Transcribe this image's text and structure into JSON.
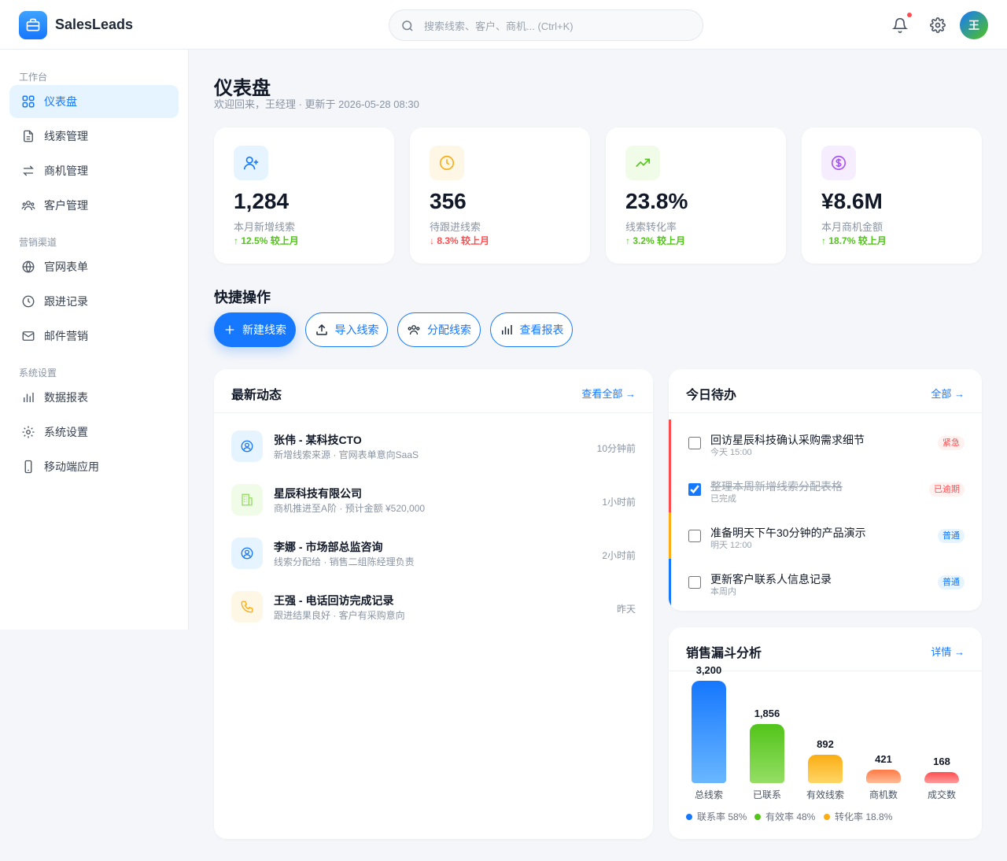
{
  "header": {
    "brand": "SalesLeads",
    "search_placeholder": "搜索线索、客户、商机... (Ctrl+K)",
    "avatar_text": "王"
  },
  "sidebar": {
    "sections": [
      {
        "title": "工作台",
        "items": [
          {
            "label": "仪表盘",
            "icon": "grid-icon",
            "active": true
          },
          {
            "label": "线索管理",
            "icon": "document-icon"
          },
          {
            "label": "商机管理",
            "icon": "swap-icon"
          },
          {
            "label": "客户管理",
            "icon": "users-icon"
          }
        ]
      },
      {
        "title": "营销渠道",
        "items": [
          {
            "label": "官网表单",
            "icon": "globe-icon"
          },
          {
            "label": "跟进记录",
            "icon": "clock-icon"
          },
          {
            "label": "邮件营销",
            "icon": "mail-icon"
          }
        ]
      },
      {
        "title": "系统设置",
        "items": [
          {
            "label": "数据报表",
            "icon": "bar-chart-icon"
          },
          {
            "label": "系统设置",
            "icon": "gear-icon"
          },
          {
            "label": "移动端应用",
            "icon": "phone-icon"
          }
        ]
      }
    ]
  },
  "page": {
    "title": "仪表盘",
    "subtitle": "欢迎回来，王经理 · 更新于 2026-05-28 08:30"
  },
  "stats": [
    {
      "value": "1,284",
      "label": "本月新增线索",
      "trend": "↑ 12.5% 较上月",
      "direction": "up",
      "icon": "user-plus-icon",
      "color": "#1677ff",
      "bg": "#e6f4ff"
    },
    {
      "value": "356",
      "label": "待跟进线索",
      "trend": "↓ 8.3% 较上月",
      "direction": "down",
      "icon": "clock-icon",
      "color": "#faad14",
      "bg": "#fff7e6"
    },
    {
      "value": "23.8%",
      "label": "线索转化率",
      "trend": "↑ 3.2% 较上月",
      "direction": "up",
      "icon": "trending-up-icon",
      "color": "#52c41a",
      "bg": "#f0fbe8"
    },
    {
      "value": "¥8.6M",
      "label": "本月商机金额",
      "trend": "↑ 18.7% 较上月",
      "direction": "up",
      "icon": "dollar-icon",
      "color": "#a855f7",
      "bg": "#f6edff"
    }
  ],
  "quick_actions": {
    "title": "快捷操作",
    "buttons": [
      {
        "label": "新建线索",
        "icon": "plus-icon"
      },
      {
        "label": "导入线索",
        "icon": "upload-icon"
      },
      {
        "label": "分配线索",
        "icon": "users-icon"
      },
      {
        "label": "查看报表",
        "icon": "bar-chart-icon"
      }
    ]
  },
  "activities": {
    "title": "最新动态",
    "link": "查看全部 →",
    "items": [
      {
        "title": "张伟 - 某科技CTO",
        "sub": "新增线索来源 · 官网表单意向SaaS",
        "time": "10分钟前",
        "icon": "user-circle-icon",
        "color": "#1677ff",
        "bg": "#e6f4ff"
      },
      {
        "title": "星辰科技有限公司",
        "sub": "商机推进至A阶 · 预计金额 ¥520,000",
        "time": "1小时前",
        "icon": "building-icon",
        "color": "#52c41a",
        "bg": "#f0fbe8"
      },
      {
        "title": "李娜 - 市场部总监咨询",
        "sub": "线索分配给 · 销售二组陈经理负责",
        "time": "2小时前",
        "icon": "user-circle-icon",
        "color": "#1677ff",
        "bg": "#e6f4ff"
      },
      {
        "title": "王强 - 电话回访完成记录",
        "sub": "跟进结果良好 · 客户有采购意向",
        "time": "昨天",
        "icon": "phone-call-icon",
        "color": "#faad14",
        "bg": "#fff7e6"
      }
    ]
  },
  "tasks": {
    "title": "今日待办",
    "link": "全部 →",
    "items": [
      {
        "title": "回访星辰科技确认采购需求细节",
        "sub": "今天 15:00",
        "tag": "紧急",
        "tag_color": "red",
        "bar": "#ff4d4f",
        "done": false
      },
      {
        "title": "整理本周新增线索分配表格",
        "sub": "已完成",
        "tag": "已逾期",
        "tag_color": "red",
        "bar": "#ff4d4f",
        "done": true
      },
      {
        "title": "准备明天下午30分钟的产品演示",
        "sub": "明天 12:00",
        "tag": "普通",
        "tag_color": "blue",
        "bar": "#faad14",
        "done": false
      },
      {
        "title": "更新客户联系人信息记录",
        "sub": "本周内",
        "tag": "普通",
        "tag_color": "blue",
        "bar": "#1677ff",
        "done": false
      }
    ]
  },
  "funnel": {
    "title": "销售漏斗分析",
    "link": "详情 →",
    "legend": [
      {
        "text": "联系率 58%",
        "color": "#1677ff"
      },
      {
        "text": "有效率 48%",
        "color": "#52c41a"
      },
      {
        "text": "转化率 18.8%",
        "color": "#faad14"
      }
    ]
  },
  "chart_data": {
    "type": "bar",
    "title": "销售漏斗分析",
    "categories": [
      "总线索",
      "已联系",
      "有效线索",
      "商机数",
      "成交数"
    ],
    "values": [
      3200,
      1856,
      892,
      421,
      168
    ],
    "value_labels": [
      "3,200",
      "1,856",
      "892",
      "421",
      "168"
    ],
    "colors": [
      [
        "#1677ff",
        "#69b7ff"
      ],
      [
        "#52c41a",
        "#95de64"
      ],
      [
        "#faad14",
        "#ffd666"
      ],
      [
        "#ff7a45",
        "#ffbb96"
      ],
      [
        "#ff4d4f",
        "#ff9c9c"
      ]
    ],
    "ylim": [
      0,
      3200
    ]
  }
}
